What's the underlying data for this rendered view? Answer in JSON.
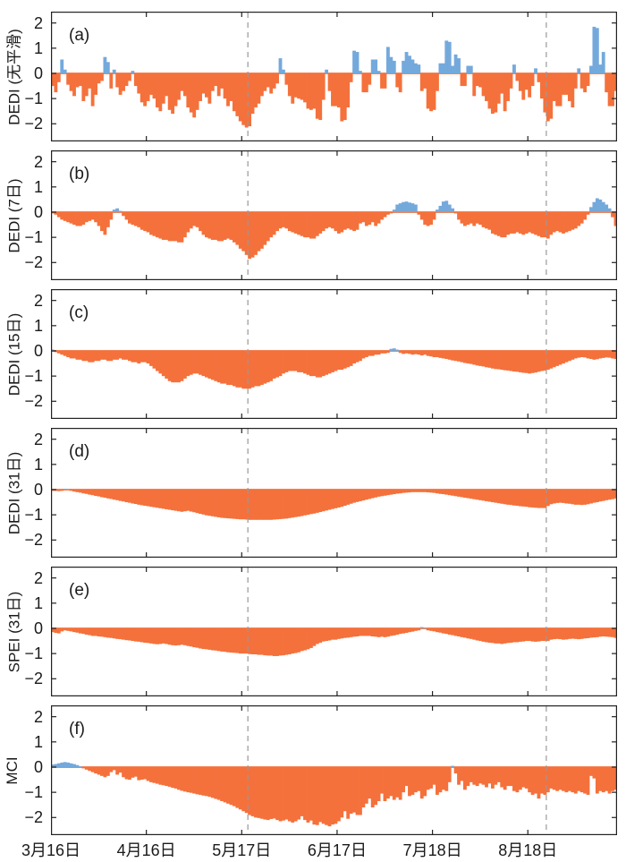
{
  "figure_name": "daily drought index comparison, six stacked bar panels",
  "chart_data": {
    "type": "bar",
    "title": "",
    "x_axis": {
      "tick_labels": [
        "3月16日",
        "4月16日",
        "5月17日",
        "6月17日",
        "7月18日",
        "8月18日"
      ],
      "tick_days": [
        0,
        31,
        62,
        93,
        124,
        155
      ],
      "days_total": 184
    },
    "y_ticks": [
      2,
      1,
      0,
      -1,
      -2
    ],
    "ylim": [
      -2.7,
      2.45
    ],
    "dashed_vertical_lines_days": [
      64,
      161
    ],
    "colors": {
      "positive_bar": "#74A9DC",
      "negative_bar": "#F4713C",
      "dashed_line": "#999999",
      "axis": "#222222",
      "text": "#1a1a1a"
    },
    "panels": [
      {
        "id": "a",
        "tag": "(a)",
        "ylabel": "DEDI (无平滑)",
        "values": [
          -0.5,
          -0.75,
          -0.35,
          0.55,
          0.15,
          -0.45,
          -0.7,
          -0.9,
          -0.55,
          -0.5,
          -1.1,
          -0.9,
          -0.6,
          -1.3,
          -0.85,
          -0.4,
          -0.3,
          0.65,
          0.45,
          -0.6,
          0.15,
          -0.55,
          -0.85,
          -0.7,
          -0.5,
          -0.3,
          0.1,
          -0.5,
          -0.8,
          -1.15,
          -1.3,
          -1.1,
          -0.85,
          -1.0,
          -1.35,
          -1.5,
          -1.2,
          -0.9,
          -1.45,
          -1.6,
          -1.3,
          -1.05,
          -0.7,
          -0.9,
          -1.35,
          -1.55,
          -1.75,
          -1.45,
          -1.1,
          -0.8,
          -0.95,
          -1.2,
          -0.7,
          -0.5,
          -0.9,
          -0.6,
          -1.0,
          -1.3,
          -1.1,
          -1.5,
          -1.7,
          -1.9,
          -2.05,
          -2.15,
          -2.1,
          -1.6,
          -1.35,
          -1.2,
          -0.9,
          -0.7,
          -0.55,
          -0.8,
          -0.6,
          -0.4,
          0.6,
          0.15,
          -0.45,
          -0.9,
          -1.2,
          -0.95,
          -1.0,
          -1.05,
          -1.15,
          -1.4,
          -1.45,
          -1.4,
          -1.8,
          -1.85,
          -1.05,
          0.15,
          -0.7,
          -1.3,
          -1.3,
          -1.35,
          -1.9,
          -1.85,
          -1.35,
          -0.35,
          0.9,
          0.85,
          0.1,
          -0.75,
          -0.75,
          -0.45,
          0.55,
          0.55,
          0.1,
          -0.6,
          -0.6,
          1.05,
          0.65,
          0.5,
          -0.55,
          -0.75,
          0.5,
          0.85,
          0.7,
          0.55,
          0.4,
          0.35,
          -0.7,
          -0.6,
          -1.4,
          -1.5,
          -1.45,
          -0.7,
          0.4,
          0.4,
          1.3,
          1.25,
          0.3,
          0.75,
          0.6,
          -0.5,
          -0.5,
          0.3,
          0.3,
          -0.9,
          -0.5,
          -0.55,
          -0.9,
          -1.1,
          -1.4,
          -1.6,
          -1.55,
          -1.2,
          -0.8,
          -1.5,
          -1.1,
          -0.6,
          0.35,
          -0.3,
          -0.7,
          -1.05,
          -0.65,
          -0.95,
          -0.5,
          0.2,
          -0.35,
          -1.0,
          -1.55,
          -1.9,
          -1.8,
          -1.1,
          -1.3,
          -1.3,
          -0.85,
          -0.85,
          -1.1,
          -1.35,
          -0.6,
          0.2,
          -0.6,
          -0.75,
          -0.5,
          0.3,
          1.85,
          1.8,
          0.35,
          0.85,
          -0.75,
          -1.3,
          -1.3,
          -0.7
        ]
      },
      {
        "id": "b",
        "tag": "(b)",
        "ylabel": "DEDI (7日)",
        "values": [
          -0.05,
          -0.1,
          -0.2,
          -0.3,
          -0.35,
          -0.4,
          -0.45,
          -0.5,
          -0.55,
          -0.55,
          -0.5,
          -0.4,
          -0.35,
          -0.3,
          -0.4,
          -0.55,
          -0.75,
          -0.9,
          -0.6,
          -0.3,
          0.1,
          0.15,
          0.05,
          -0.15,
          -0.3,
          -0.45,
          -0.5,
          -0.55,
          -0.6,
          -0.7,
          -0.75,
          -0.8,
          -0.9,
          -0.95,
          -1.0,
          -1.05,
          -1.1,
          -1.1,
          -1.15,
          -1.15,
          -1.15,
          -1.2,
          -1.2,
          -1.0,
          -0.8,
          -0.65,
          -0.55,
          -0.6,
          -0.75,
          -0.9,
          -1.0,
          -1.05,
          -1.1,
          -1.1,
          -1.15,
          -1.15,
          -1.1,
          -1.05,
          -1.1,
          -1.2,
          -1.3,
          -1.45,
          -1.55,
          -1.7,
          -1.85,
          -1.8,
          -1.7,
          -1.55,
          -1.45,
          -1.3,
          -1.15,
          -1.0,
          -0.9,
          -0.75,
          -0.65,
          -0.6,
          -0.65,
          -0.75,
          -0.8,
          -0.85,
          -0.9,
          -0.95,
          -1.0,
          -1.0,
          -1.05,
          -1.05,
          -0.95,
          -0.85,
          -0.75,
          -0.65,
          -0.6,
          -0.65,
          -0.75,
          -0.85,
          -0.8,
          -0.7,
          -0.65,
          -0.7,
          -0.75,
          -0.7,
          -0.45,
          -0.4,
          -0.55,
          -0.5,
          -0.4,
          -0.55,
          -0.45,
          -0.3,
          -0.2,
          -0.1,
          -0.05,
          0.1,
          0.3,
          0.35,
          0.4,
          0.42,
          0.38,
          0.35,
          0.3,
          -0.1,
          -0.3,
          -0.5,
          -0.55,
          -0.5,
          -0.3,
          0.1,
          0.25,
          0.42,
          0.45,
          0.3,
          0.15,
          -0.05,
          -0.3,
          -0.45,
          -0.55,
          -0.5,
          -0.45,
          -0.55,
          -0.45,
          -0.5,
          -0.6,
          -0.65,
          -0.7,
          -0.85,
          -0.9,
          -0.95,
          -1.0,
          -1.0,
          -0.9,
          -0.85,
          -0.85,
          -0.8,
          -0.85,
          -0.9,
          -0.85,
          -0.8,
          -0.85,
          -0.9,
          -0.95,
          -1.0,
          -1.0,
          -1.05,
          -0.9,
          -0.8,
          -0.75,
          -0.8,
          -0.85,
          -0.8,
          -0.75,
          -0.7,
          -0.65,
          -0.55,
          -0.45,
          -0.3,
          -0.1,
          0.2,
          0.4,
          0.55,
          0.5,
          0.4,
          0.3,
          0.15,
          -0.2,
          -0.55
        ]
      },
      {
        "id": "c",
        "tag": "(c)",
        "ylabel": "DEDI (15日)",
        "values": [
          0.05,
          -0.05,
          -0.1,
          -0.15,
          -0.2,
          -0.25,
          -0.3,
          -0.3,
          -0.35,
          -0.35,
          -0.4,
          -0.4,
          -0.45,
          -0.45,
          -0.4,
          -0.4,
          -0.35,
          -0.35,
          -0.4,
          -0.4,
          -0.35,
          -0.35,
          -0.3,
          -0.35,
          -0.35,
          -0.4,
          -0.45,
          -0.45,
          -0.5,
          -0.45,
          -0.45,
          -0.5,
          -0.6,
          -0.7,
          -0.8,
          -0.9,
          -1.0,
          -1.1,
          -1.2,
          -1.25,
          -1.25,
          -1.25,
          -1.2,
          -1.1,
          -1.0,
          -0.95,
          -0.9,
          -0.9,
          -0.95,
          -1.0,
          -1.05,
          -1.1,
          -1.15,
          -1.2,
          -1.25,
          -1.3,
          -1.3,
          -1.35,
          -1.35,
          -1.4,
          -1.45,
          -1.45,
          -1.5,
          -1.5,
          -1.5,
          -1.45,
          -1.4,
          -1.4,
          -1.35,
          -1.3,
          -1.25,
          -1.2,
          -1.1,
          -1.05,
          -1.0,
          -0.9,
          -0.85,
          -0.8,
          -0.8,
          -0.8,
          -0.85,
          -0.85,
          -0.9,
          -0.95,
          -1.0,
          -1.0,
          -1.05,
          -1.05,
          -1.0,
          -0.95,
          -0.9,
          -0.85,
          -0.8,
          -0.75,
          -0.75,
          -0.7,
          -0.65,
          -0.6,
          -0.5,
          -0.45,
          -0.4,
          -0.3,
          -0.25,
          -0.2,
          -0.2,
          -0.15,
          -0.15,
          -0.1,
          -0.1,
          -0.08,
          0.08,
          0.1,
          0.05,
          -0.08,
          -0.12,
          -0.1,
          -0.12,
          -0.15,
          -0.13,
          -0.15,
          -0.18,
          -0.15,
          -0.2,
          -0.22,
          -0.25,
          -0.25,
          -0.28,
          -0.3,
          -0.32,
          -0.35,
          -0.38,
          -0.4,
          -0.42,
          -0.45,
          -0.48,
          -0.5,
          -0.52,
          -0.55,
          -0.58,
          -0.6,
          -0.62,
          -0.65,
          -0.67,
          -0.7,
          -0.72,
          -0.73,
          -0.75,
          -0.77,
          -0.78,
          -0.8,
          -0.82,
          -0.83,
          -0.85,
          -0.87,
          -0.88,
          -0.9,
          -0.88,
          -0.86,
          -0.83,
          -0.8,
          -0.78,
          -0.75,
          -0.7,
          -0.65,
          -0.6,
          -0.55,
          -0.5,
          -0.45,
          -0.4,
          -0.35,
          -0.3,
          -0.27,
          -0.25,
          -0.26,
          -0.3,
          -0.32,
          -0.35,
          -0.33,
          -0.3,
          -0.28,
          -0.26,
          -0.27,
          -0.3,
          -0.32
        ]
      },
      {
        "id": "d",
        "tag": "(d)",
        "ylabel": "DEDI (31日)",
        "values": [
          -0.05,
          -0.05,
          -0.06,
          -0.05,
          0.03,
          0.02,
          -0.05,
          -0.08,
          -0.1,
          -0.12,
          -0.15,
          -0.17,
          -0.2,
          -0.22,
          -0.25,
          -0.27,
          -0.3,
          -0.32,
          -0.35,
          -0.37,
          -0.4,
          -0.42,
          -0.45,
          -0.47,
          -0.5,
          -0.52,
          -0.55,
          -0.57,
          -0.6,
          -0.62,
          -0.64,
          -0.66,
          -0.68,
          -0.7,
          -0.72,
          -0.74,
          -0.76,
          -0.78,
          -0.8,
          -0.82,
          -0.84,
          -0.86,
          -0.88,
          -0.86,
          -0.84,
          -0.87,
          -0.9,
          -0.93,
          -0.96,
          -0.99,
          -1.02,
          -1.04,
          -1.06,
          -1.08,
          -1.1,
          -1.12,
          -1.13,
          -1.14,
          -1.15,
          -1.16,
          -1.17,
          -1.18,
          -1.18,
          -1.19,
          -1.2,
          -1.2,
          -1.2,
          -1.2,
          -1.2,
          -1.2,
          -1.2,
          -1.2,
          -1.19,
          -1.18,
          -1.17,
          -1.16,
          -1.15,
          -1.13,
          -1.11,
          -1.09,
          -1.07,
          -1.05,
          -1.02,
          -1.0,
          -0.97,
          -0.95,
          -0.92,
          -0.89,
          -0.86,
          -0.83,
          -0.8,
          -0.77,
          -0.74,
          -0.71,
          -0.68,
          -0.64,
          -0.6,
          -0.56,
          -0.52,
          -0.49,
          -0.46,
          -0.43,
          -0.4,
          -0.37,
          -0.34,
          -0.31,
          -0.28,
          -0.26,
          -0.24,
          -0.22,
          -0.2,
          -0.18,
          -0.16,
          -0.15,
          -0.13,
          -0.12,
          -0.11,
          -0.1,
          -0.1,
          -0.1,
          -0.1,
          -0.1,
          -0.11,
          -0.12,
          -0.13,
          -0.15,
          -0.17,
          -0.18,
          -0.2,
          -0.22,
          -0.24,
          -0.26,
          -0.28,
          -0.3,
          -0.32,
          -0.34,
          -0.36,
          -0.38,
          -0.4,
          -0.42,
          -0.44,
          -0.46,
          -0.48,
          -0.5,
          -0.52,
          -0.54,
          -0.56,
          -0.58,
          -0.6,
          -0.61,
          -0.63,
          -0.64,
          -0.66,
          -0.67,
          -0.68,
          -0.7,
          -0.71,
          -0.72,
          -0.73,
          -0.73,
          -0.73,
          -0.65,
          -0.58,
          -0.55,
          -0.53,
          -0.52,
          -0.53,
          -0.55,
          -0.56,
          -0.58,
          -0.6,
          -0.6,
          -0.61,
          -0.6,
          -0.58,
          -0.55,
          -0.52,
          -0.5,
          -0.47,
          -0.45,
          -0.42,
          -0.4,
          -0.38,
          -0.35
        ]
      },
      {
        "id": "e",
        "tag": "(e)",
        "ylabel": "SPEI (31日)",
        "values": [
          -0.15,
          -0.18,
          -0.2,
          -0.12,
          -0.08,
          -0.1,
          -0.12,
          -0.15,
          -0.17,
          -0.2,
          -0.22,
          -0.25,
          -0.27,
          -0.3,
          -0.3,
          -0.32,
          -0.33,
          -0.35,
          -0.37,
          -0.38,
          -0.4,
          -0.42,
          -0.43,
          -0.45,
          -0.47,
          -0.48,
          -0.5,
          -0.52,
          -0.53,
          -0.55,
          -0.57,
          -0.58,
          -0.6,
          -0.62,
          -0.63,
          -0.62,
          -0.6,
          -0.62,
          -0.65,
          -0.67,
          -0.68,
          -0.67,
          -0.65,
          -0.67,
          -0.7,
          -0.72,
          -0.75,
          -0.77,
          -0.8,
          -0.82,
          -0.83,
          -0.85,
          -0.87,
          -0.88,
          -0.9,
          -0.92,
          -0.93,
          -0.95,
          -0.96,
          -0.97,
          -0.98,
          -1.0,
          -1.0,
          -1.0,
          -1.02,
          -1.03,
          -1.03,
          -1.05,
          -1.05,
          -1.07,
          -1.08,
          -1.08,
          -1.1,
          -1.1,
          -1.08,
          -1.07,
          -1.05,
          -1.03,
          -1.0,
          -0.98,
          -0.95,
          -0.9,
          -0.87,
          -0.83,
          -0.78,
          -0.7,
          -0.62,
          -0.57,
          -0.52,
          -0.5,
          -0.48,
          -0.45,
          -0.45,
          -0.42,
          -0.4,
          -0.38,
          -0.37,
          -0.35,
          -0.33,
          -0.32,
          -0.3,
          -0.3,
          -0.3,
          -0.3,
          -0.32,
          -0.33,
          -0.35,
          -0.33,
          -0.35,
          -0.33,
          -0.3,
          -0.28,
          -0.25,
          -0.22,
          -0.2,
          -0.18,
          -0.15,
          -0.13,
          -0.1,
          -0.08,
          0.05,
          0.03,
          -0.08,
          -0.1,
          -0.12,
          -0.15,
          -0.17,
          -0.2,
          -0.22,
          -0.25,
          -0.27,
          -0.3,
          -0.32,
          -0.35,
          -0.37,
          -0.4,
          -0.42,
          -0.45,
          -0.48,
          -0.5,
          -0.53,
          -0.55,
          -0.57,
          -0.58,
          -0.6,
          -0.6,
          -0.62,
          -0.6,
          -0.58,
          -0.57,
          -0.55,
          -0.55,
          -0.53,
          -0.52,
          -0.5,
          -0.5,
          -0.52,
          -0.53,
          -0.52,
          -0.5,
          -0.5,
          -0.5,
          -0.45,
          -0.43,
          -0.42,
          -0.43,
          -0.45,
          -0.44,
          -0.42,
          -0.41,
          -0.42,
          -0.43,
          -0.42,
          -0.4,
          -0.39,
          -0.37,
          -0.36,
          -0.35,
          -0.33,
          -0.32,
          -0.33,
          -0.34,
          -0.35,
          -0.38
        ]
      },
      {
        "id": "f",
        "tag": "(f)",
        "ylabel": "MCI",
        "values": [
          0.1,
          0.12,
          0.15,
          0.18,
          0.2,
          0.18,
          0.15,
          0.12,
          0.08,
          0.03,
          -0.05,
          -0.1,
          -0.15,
          -0.2,
          -0.25,
          -0.3,
          -0.35,
          -0.4,
          -0.35,
          -0.2,
          -0.12,
          -0.3,
          -0.22,
          -0.4,
          -0.48,
          -0.5,
          -0.42,
          -0.38,
          -0.52,
          -0.5,
          -0.48,
          -0.55,
          -0.6,
          -0.63,
          -0.66,
          -0.7,
          -0.72,
          -0.75,
          -0.78,
          -0.82,
          -0.85,
          -0.9,
          -0.94,
          -0.97,
          -1.0,
          -1.02,
          -1.05,
          -1.08,
          -1.1,
          -1.13,
          -1.15,
          -1.18,
          -1.22,
          -1.26,
          -1.3,
          -1.35,
          -1.4,
          -1.45,
          -1.5,
          -1.55,
          -1.62,
          -1.68,
          -1.75,
          -1.82,
          -1.9,
          -1.95,
          -2.0,
          -2.02,
          -2.05,
          -2.08,
          -2.1,
          -2.06,
          -2.04,
          -2.1,
          -2.15,
          -2.12,
          -2.08,
          -2.15,
          -2.2,
          -2.15,
          -2.08,
          -1.95,
          -2.1,
          -2.2,
          -2.12,
          -2.28,
          -2.3,
          -2.18,
          -2.25,
          -2.3,
          -2.35,
          -2.28,
          -2.25,
          -2.15,
          -2.0,
          -1.75,
          -2.05,
          -1.85,
          -1.8,
          -1.9,
          -1.9,
          -1.6,
          -1.45,
          -1.25,
          -1.6,
          -1.5,
          -1.35,
          -1.05,
          -1.35,
          -1.25,
          -1.15,
          -1.3,
          -1.2,
          -1.3,
          -1.0,
          -0.75,
          -1.15,
          -1.1,
          -1.0,
          -0.95,
          -1.25,
          -1.15,
          -0.9,
          -0.85,
          -0.7,
          -1.1,
          -1.0,
          -0.9,
          -0.95,
          -0.6,
          0.05,
          -0.25,
          -0.7,
          -0.55,
          -0.9,
          -0.75,
          -0.6,
          -0.7,
          -0.75,
          -0.65,
          -0.7,
          -0.8,
          -0.65,
          -0.85,
          -0.7,
          -0.6,
          -0.8,
          -0.9,
          -0.75,
          -0.75,
          -0.95,
          -1.0,
          -0.9,
          -0.8,
          -0.85,
          -1.0,
          -1.1,
          -1.05,
          -1.25,
          -1.05,
          -1.1,
          -1.0,
          -0.85,
          -0.9,
          -0.95,
          -0.9,
          -0.95,
          -1.0,
          -0.95,
          -1.0,
          -1.05,
          -0.95,
          -1.0,
          -1.05,
          -1.1,
          -0.35,
          -0.45,
          -1.05,
          -0.95,
          -1.0,
          -0.95,
          -1.05,
          -0.95,
          -0.9
        ]
      }
    ]
  }
}
